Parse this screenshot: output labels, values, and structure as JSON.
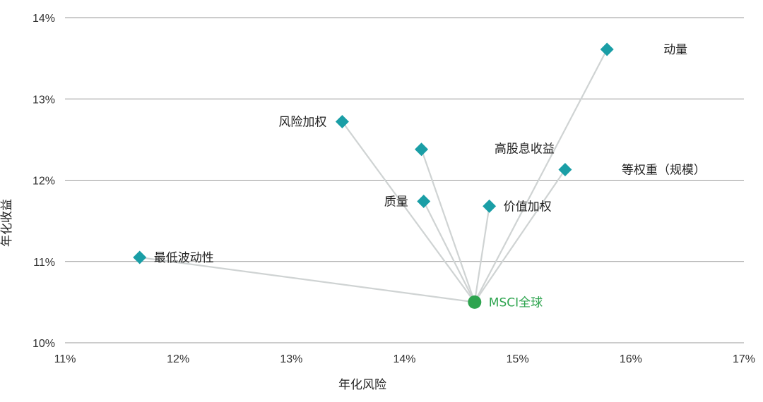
{
  "chart_data": {
    "type": "scatter",
    "xlabel": "年化风险",
    "ylabel": "年化收益",
    "xlim": [
      11,
      17
    ],
    "ylim": [
      10,
      14
    ],
    "x_ticks": [
      11,
      12,
      13,
      14,
      15,
      16,
      17
    ],
    "y_ticks": [
      10,
      11,
      12,
      13,
      14
    ],
    "x_tick_labels": [
      "11%",
      "12%",
      "13%",
      "14%",
      "15%",
      "16%",
      "17%"
    ],
    "y_tick_labels": [
      "10%",
      "11%",
      "12%",
      "13%",
      "14%"
    ],
    "grid": "horizontal",
    "colors": {
      "factor": "#1a9ea6",
      "benchmark": "#2ea44f",
      "connector": "#cfd3d3",
      "grid": "#9a9a9a"
    },
    "benchmark": {
      "label": "MSCI全球",
      "x": 14.62,
      "y": 10.5,
      "marker": "circle"
    },
    "points": [
      {
        "label": "最低波动性",
        "x": 11.66,
        "y": 11.05,
        "label_pos": "right"
      },
      {
        "label": "风险加权",
        "x": 13.45,
        "y": 12.72,
        "label_pos": "left"
      },
      {
        "label": "",
        "x": 14.15,
        "y": 12.38,
        "label_pos": "none"
      },
      {
        "label": "质量",
        "x": 14.17,
        "y": 11.74,
        "label_pos": "left"
      },
      {
        "label": "价值加权",
        "x": 14.75,
        "y": 11.68,
        "label_pos": "right"
      },
      {
        "label": "高股息收益",
        "x": 15.42,
        "y": 12.13,
        "label_pos": "above-left"
      },
      {
        "label": "等权重（规模）",
        "x": 15.42,
        "y": 12.13,
        "label_pos": "far-right"
      },
      {
        "label": "动量",
        "x": 15.79,
        "y": 13.61,
        "label_pos": "far-right"
      }
    ]
  }
}
